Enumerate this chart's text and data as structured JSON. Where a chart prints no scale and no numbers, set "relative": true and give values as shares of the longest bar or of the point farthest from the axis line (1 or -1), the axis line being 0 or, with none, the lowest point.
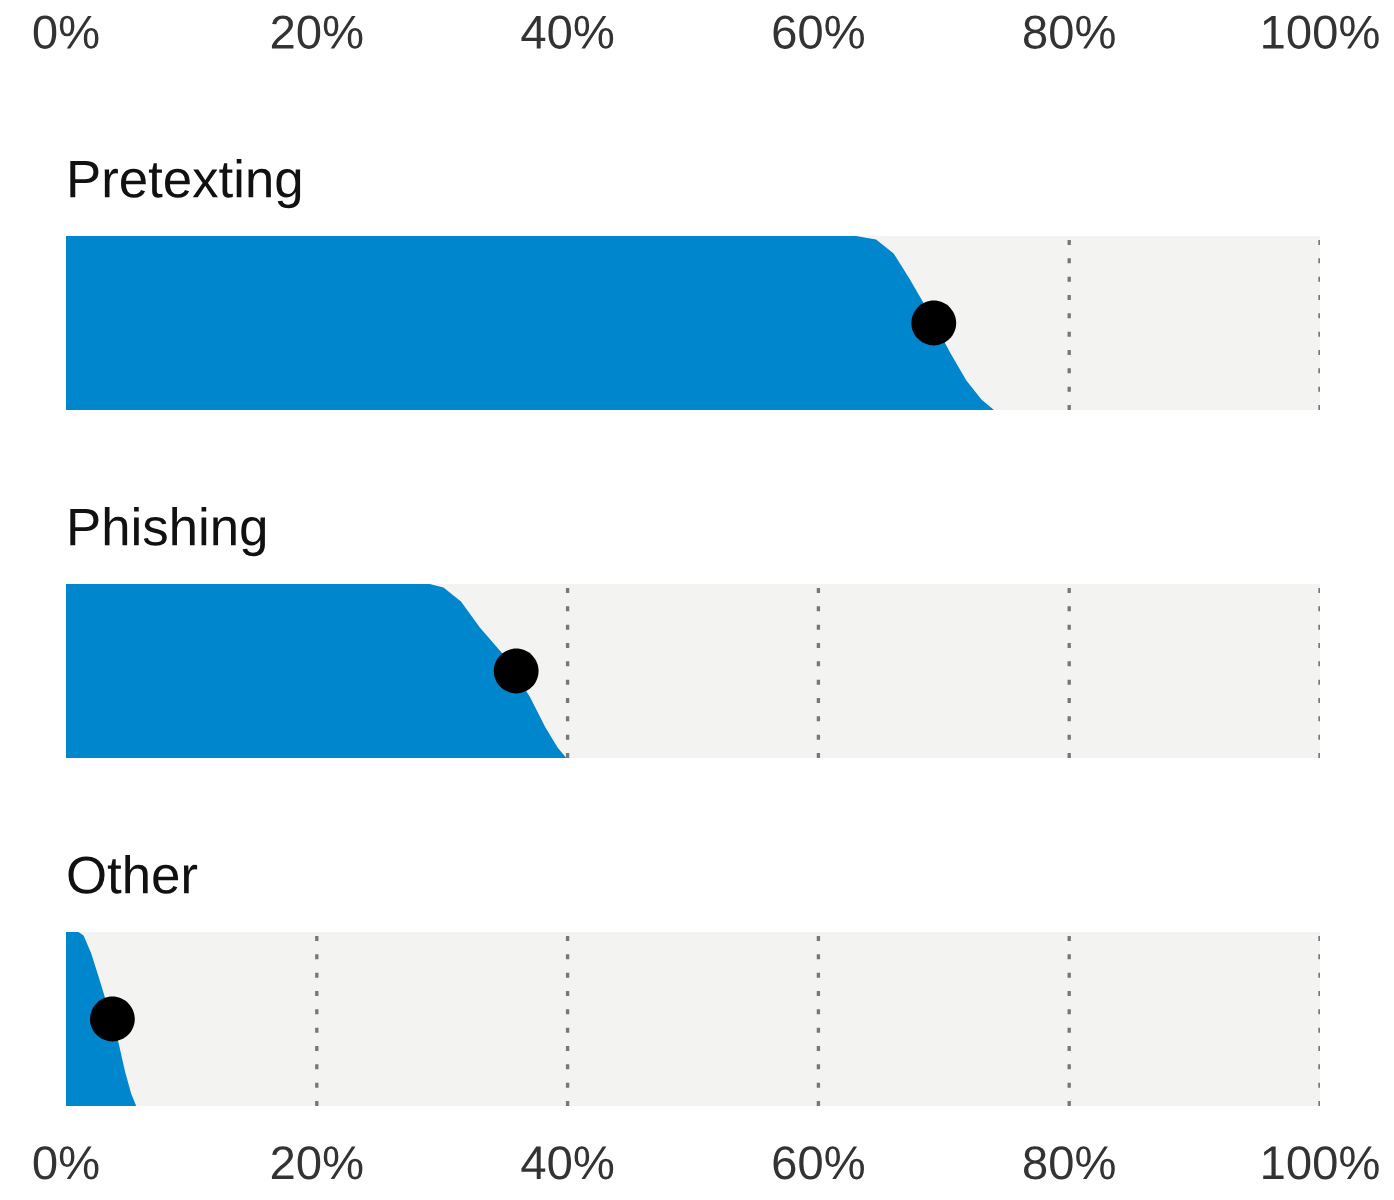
{
  "chart_data": [
    {
      "type": "area",
      "title": "Pretexting",
      "relative": true,
      "xlim": [
        0,
        100
      ],
      "x2lim": [
        0,
        100
      ],
      "x2ticks": [
        {
          "value": 0,
          "label": "0%"
        },
        {
          "value": 20,
          "label": "20%"
        },
        {
          "value": 40,
          "label": "40%"
        },
        {
          "value": 60,
          "label": "60%"
        },
        {
          "value": 80,
          "label": "80%"
        },
        {
          "value": 100,
          "label": "100%"
        }
      ],
      "grid": "x",
      "series": [
        {
          "color": "#0086cd",
          "x": [
            0,
            63,
            64.6,
            66,
            67.3,
            68.5,
            70.5,
            71.8,
            73,
            74,
            100
          ],
          "values": [
            1,
            1,
            0.98,
            0.9,
            0.75,
            0.6,
            0.33,
            0.17,
            0.06,
            0,
            0
          ]
        },
        {
          "type": "scatter",
          "color": "#000000",
          "marker": "circle",
          "x": [
            69.2
          ],
          "values": [
            0.5
          ]
        }
      ]
    },
    {
      "type": "area",
      "title": "Phishing",
      "relative": true,
      "xlim": [
        0,
        100
      ],
      "xticks": [
        0,
        20,
        40,
        60,
        80,
        100
      ],
      "tick_labels": false,
      "grid": "x",
      "series": [
        {
          "color": "#0086cd",
          "x": [
            0,
            29,
            30.1,
            31.5,
            33,
            34.8,
            37,
            38.2,
            39.2,
            39.9,
            100
          ],
          "values": [
            1,
            1,
            0.98,
            0.9,
            0.75,
            0.6,
            0.35,
            0.18,
            0.06,
            0,
            0
          ]
        },
        {
          "type": "scatter",
          "color": "#000000",
          "marker": "circle",
          "x": [
            35.9
          ],
          "values": [
            0.5
          ]
        }
      ]
    },
    {
      "type": "area",
      "title": "Other",
      "relative": true,
      "xlim": [
        0,
        100
      ],
      "xticks": [
        {
          "value": 0,
          "label": "0%"
        },
        {
          "value": 20,
          "label": "20%"
        },
        {
          "value": 40,
          "label": "40%"
        },
        {
          "value": 60,
          "label": "60%"
        },
        {
          "value": 80,
          "label": "80%"
        },
        {
          "value": 100,
          "label": "100%"
        }
      ],
      "grid": "x",
      "series": [
        {
          "color": "#0086cd",
          "x": [
            0,
            1,
            1.4,
            2,
            2.7,
            3.2,
            4.2,
            4.7,
            5.2,
            5.6,
            100
          ],
          "values": [
            1,
            1,
            0.98,
            0.88,
            0.72,
            0.6,
            0.36,
            0.2,
            0.07,
            0,
            0
          ]
        },
        {
          "type": "scatter",
          "color": "#000000",
          "marker": "circle",
          "x": [
            3.7
          ],
          "values": [
            0.5
          ]
        }
      ]
    }
  ]
}
